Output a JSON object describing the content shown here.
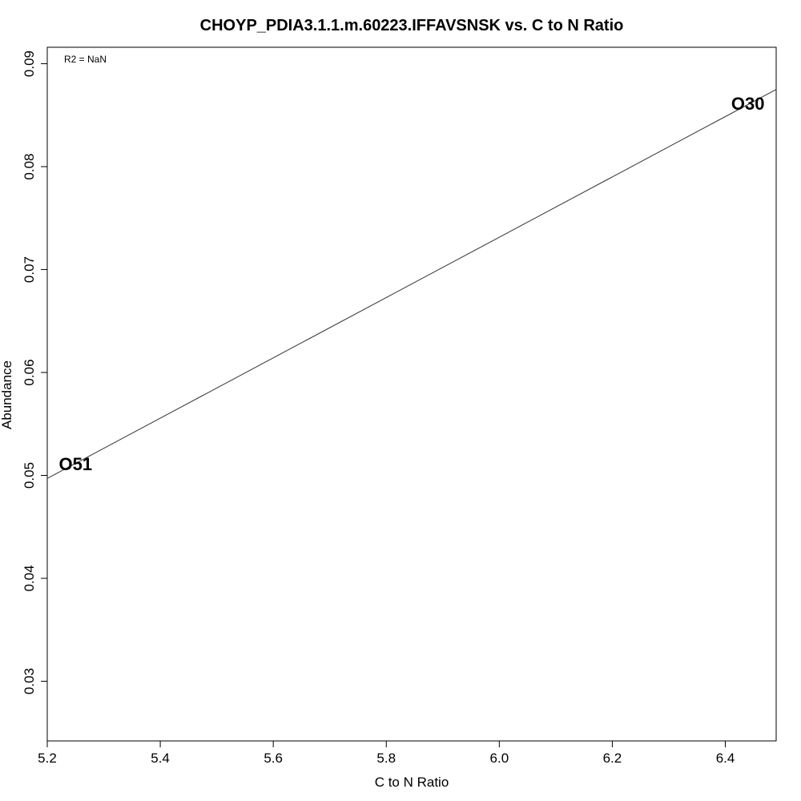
{
  "chart_data": {
    "type": "scatter",
    "title": "CHOYP_PDIA3.1.1.m.60223.IFFAVSNSK vs. C to N Ratio",
    "xlabel": "C to N Ratio",
    "ylabel": "Abundance",
    "xlim": [
      5.2,
      6.49
    ],
    "ylim": [
      0.0242,
      0.0916
    ],
    "x_ticks": [
      5.2,
      5.4,
      5.6,
      5.8,
      6.0,
      6.2,
      6.4
    ],
    "x_tick_labels": [
      "5.2",
      "5.4",
      "5.6",
      "5.8",
      "6.0",
      "6.2",
      "6.4"
    ],
    "y_ticks": [
      0.03,
      0.04,
      0.05,
      0.06,
      0.07,
      0.08,
      0.09
    ],
    "y_tick_labels": [
      "0.03",
      "0.04",
      "0.05",
      "0.06",
      "0.07",
      "0.08",
      "0.09"
    ],
    "points": [
      {
        "label": "O51",
        "x": 5.25,
        "y": 0.0511
      },
      {
        "label": "O30",
        "x": 6.44,
        "y": 0.0861
      }
    ],
    "fit_line": {
      "x": [
        5.2,
        6.49
      ],
      "y": [
        0.0497,
        0.0875
      ]
    },
    "annotation": "R2 = NaN",
    "grid": false
  }
}
